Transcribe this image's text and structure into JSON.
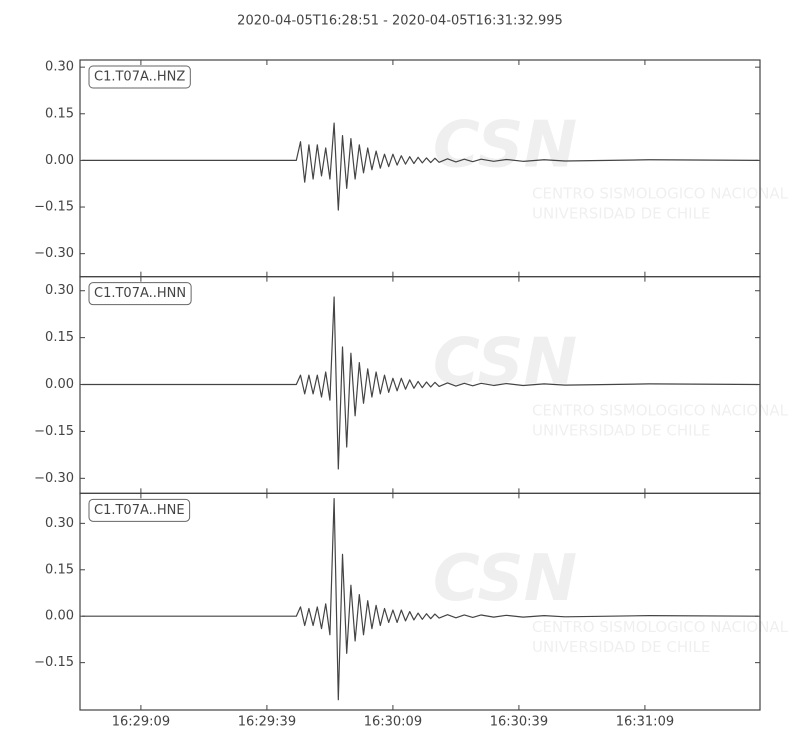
{
  "chart_data": {
    "type": "line",
    "title": "2020-04-05T16:28:51  -  2020-04-05T16:31:32.995",
    "color": "#444444",
    "watermark": {
      "logo": "CSN",
      "lines": [
        "CENTRO SISMOLOGICO NACIONAL",
        "UNIVERSIDAD DE CHILE"
      ]
    },
    "xlim": [
      "16:28:54.5",
      "16:31:36.4"
    ],
    "xticks": [
      "16:29:09",
      "16:29:39",
      "16:30:09",
      "16:30:39",
      "16:31:09"
    ],
    "x": [
      "16:28:55",
      "16:29:46",
      "16:29:47",
      "16:29:48",
      "16:29:49",
      "16:29:50",
      "16:29:51",
      "16:29:52",
      "16:29:53",
      "16:29:54",
      "16:29:55",
      "16:29:56",
      "16:29:57",
      "16:29:58",
      "16:29:59",
      "16:30:00",
      "16:30:01",
      "16:30:02",
      "16:30:03",
      "16:30:04",
      "16:30:05",
      "16:30:06",
      "16:30:07",
      "16:30:08",
      "16:30:09",
      "16:30:10",
      "16:30:11",
      "16:30:12",
      "16:30:13",
      "16:30:14",
      "16:30:15",
      "16:30:16",
      "16:30:17",
      "16:30:18",
      "16:30:19",
      "16:30:20",
      "16:30:22",
      "16:30:24",
      "16:30:26",
      "16:30:28",
      "16:30:30",
      "16:30:33",
      "16:30:36",
      "16:30:40",
      "16:30:45",
      "16:30:50",
      "16:31:10",
      "16:31:36"
    ],
    "series": [
      {
        "name": "C1.T07A..HNZ",
        "ylim": [
          -0.374,
          0.323
        ],
        "yticks": [
          {
            "value": 0.3,
            "label": "0.30"
          },
          {
            "value": 0.15,
            "label": "0.15"
          },
          {
            "value": 0,
            "label": "0.00"
          },
          {
            "value": -0.15,
            "label": "−0.15"
          },
          {
            "value": -0.3,
            "label": "−0.30"
          }
        ],
        "values": [
          0,
          0,
          0.06,
          -0.07,
          0.05,
          -0.06,
          0.05,
          -0.05,
          0.04,
          -0.06,
          0.12,
          -0.16,
          0.08,
          -0.09,
          0.07,
          -0.06,
          0.05,
          -0.04,
          0.04,
          -0.03,
          0.03,
          -0.025,
          0.02,
          -0.02,
          0.02,
          -0.015,
          0.015,
          -0.012,
          0.012,
          -0.01,
          0.01,
          -0.008,
          0.008,
          -0.007,
          0.007,
          -0.006,
          0.005,
          -0.005,
          0.004,
          -0.004,
          0.004,
          -0.003,
          0.003,
          -0.003,
          0.002,
          -0.002,
          0.002,
          0
        ]
      },
      {
        "name": "C1.T07A..HNN",
        "ylim": [
          -0.348,
          0.345
        ],
        "yticks": [
          {
            "value": 0.3,
            "label": "0.30"
          },
          {
            "value": 0.15,
            "label": "0.15"
          },
          {
            "value": 0,
            "label": "0.00"
          },
          {
            "value": -0.15,
            "label": "−0.15"
          },
          {
            "value": -0.3,
            "label": "−0.30"
          }
        ],
        "values": [
          0,
          0,
          0.03,
          -0.03,
          0.03,
          -0.03,
          0.03,
          -0.04,
          0.04,
          -0.05,
          0.28,
          -0.27,
          0.12,
          -0.2,
          0.1,
          -0.1,
          0.07,
          -0.06,
          0.05,
          -0.04,
          0.04,
          -0.03,
          0.03,
          -0.025,
          0.02,
          -0.02,
          0.02,
          -0.015,
          0.015,
          -0.012,
          0.01,
          -0.01,
          0.008,
          -0.008,
          0.007,
          -0.006,
          0.005,
          -0.005,
          0.004,
          -0.004,
          0.004,
          -0.003,
          0.003,
          -0.003,
          0.002,
          -0.002,
          0.002,
          0
        ]
      },
      {
        "name": "C1.T07A..HNE",
        "ylim": [
          -0.303,
          0.397
        ],
        "yticks": [
          {
            "value": 0.3,
            "label": "0.30"
          },
          {
            "value": 0.15,
            "label": "0.15"
          },
          {
            "value": 0,
            "label": "0.00"
          },
          {
            "value": -0.15,
            "label": "−0.15"
          }
        ],
        "values": [
          0,
          0,
          0.03,
          -0.03,
          0.025,
          -0.03,
          0.03,
          -0.04,
          0.04,
          -0.06,
          0.38,
          -0.27,
          0.2,
          -0.12,
          0.1,
          -0.08,
          0.07,
          -0.06,
          0.05,
          -0.04,
          0.035,
          -0.03,
          0.025,
          -0.02,
          0.02,
          -0.02,
          0.02,
          -0.015,
          0.015,
          -0.012,
          0.01,
          -0.01,
          0.008,
          -0.008,
          0.007,
          -0.006,
          0.005,
          -0.005,
          0.004,
          -0.004,
          0.004,
          -0.003,
          0.003,
          -0.003,
          0.002,
          -0.002,
          0.002,
          0
        ]
      }
    ]
  }
}
